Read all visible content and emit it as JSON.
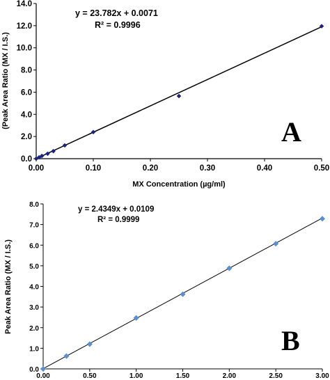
{
  "chart_data": [
    {
      "type": "scatter",
      "panel_label": "A",
      "xlabel": "MX Concentration (µg/ml)",
      "ylabel": "(Peak Area Ratio (MX / I.S.)",
      "xlim": [
        0,
        0.5
      ],
      "ylim": [
        0,
        14
      ],
      "x_ticks": [
        "0.00",
        "0.10",
        "0.20",
        "0.30",
        "0.40",
        "0.50"
      ],
      "y_ticks": [
        "0.0",
        "2.0",
        "4.0",
        "6.0",
        "8.0",
        "10.0",
        "12.0",
        "14.0"
      ],
      "equation": "y = 23.782x  + 0.0071",
      "r_squared": "R² = 0.9996",
      "trendline": {
        "slope": 23.782,
        "intercept": 0.0071
      },
      "x": [
        0.0,
        0.005,
        0.01,
        0.02,
        0.03,
        0.05,
        0.1,
        0.25,
        0.5
      ],
      "y": [
        0.0,
        0.12,
        0.25,
        0.45,
        0.68,
        1.2,
        2.4,
        5.65,
        11.95
      ],
      "marker_color": "#1a237e",
      "line_color": "#000000",
      "grid": false
    },
    {
      "type": "scatter",
      "panel_label": "B",
      "xlabel": "",
      "ylabel": "Peak Area Ratio (MX / I.S.)",
      "xlim": [
        0,
        3
      ],
      "ylim": [
        0,
        8
      ],
      "x_ticks": [
        "0.00",
        "0.50",
        "1.00",
        "1.50",
        "2.00",
        "2.50",
        "3.00"
      ],
      "y_ticks": [
        "0.0",
        "1.0",
        "2.0",
        "3.0",
        "4.0",
        "5.0",
        "6.0",
        "7.0",
        "8.0"
      ],
      "equation": "y = 2.4349x + 0.0109",
      "r_squared": "R² = 0.9999",
      "trendline": {
        "slope": 2.4349,
        "intercept": 0.0109
      },
      "x": [
        0.0,
        0.25,
        0.5,
        1.0,
        1.5,
        2.0,
        2.5,
        3.0
      ],
      "y": [
        0.0,
        0.62,
        1.2,
        2.47,
        3.62,
        4.88,
        6.07,
        7.28
      ],
      "marker_color": "#5b8fd0",
      "line_color": "#000000",
      "grid": false
    }
  ]
}
